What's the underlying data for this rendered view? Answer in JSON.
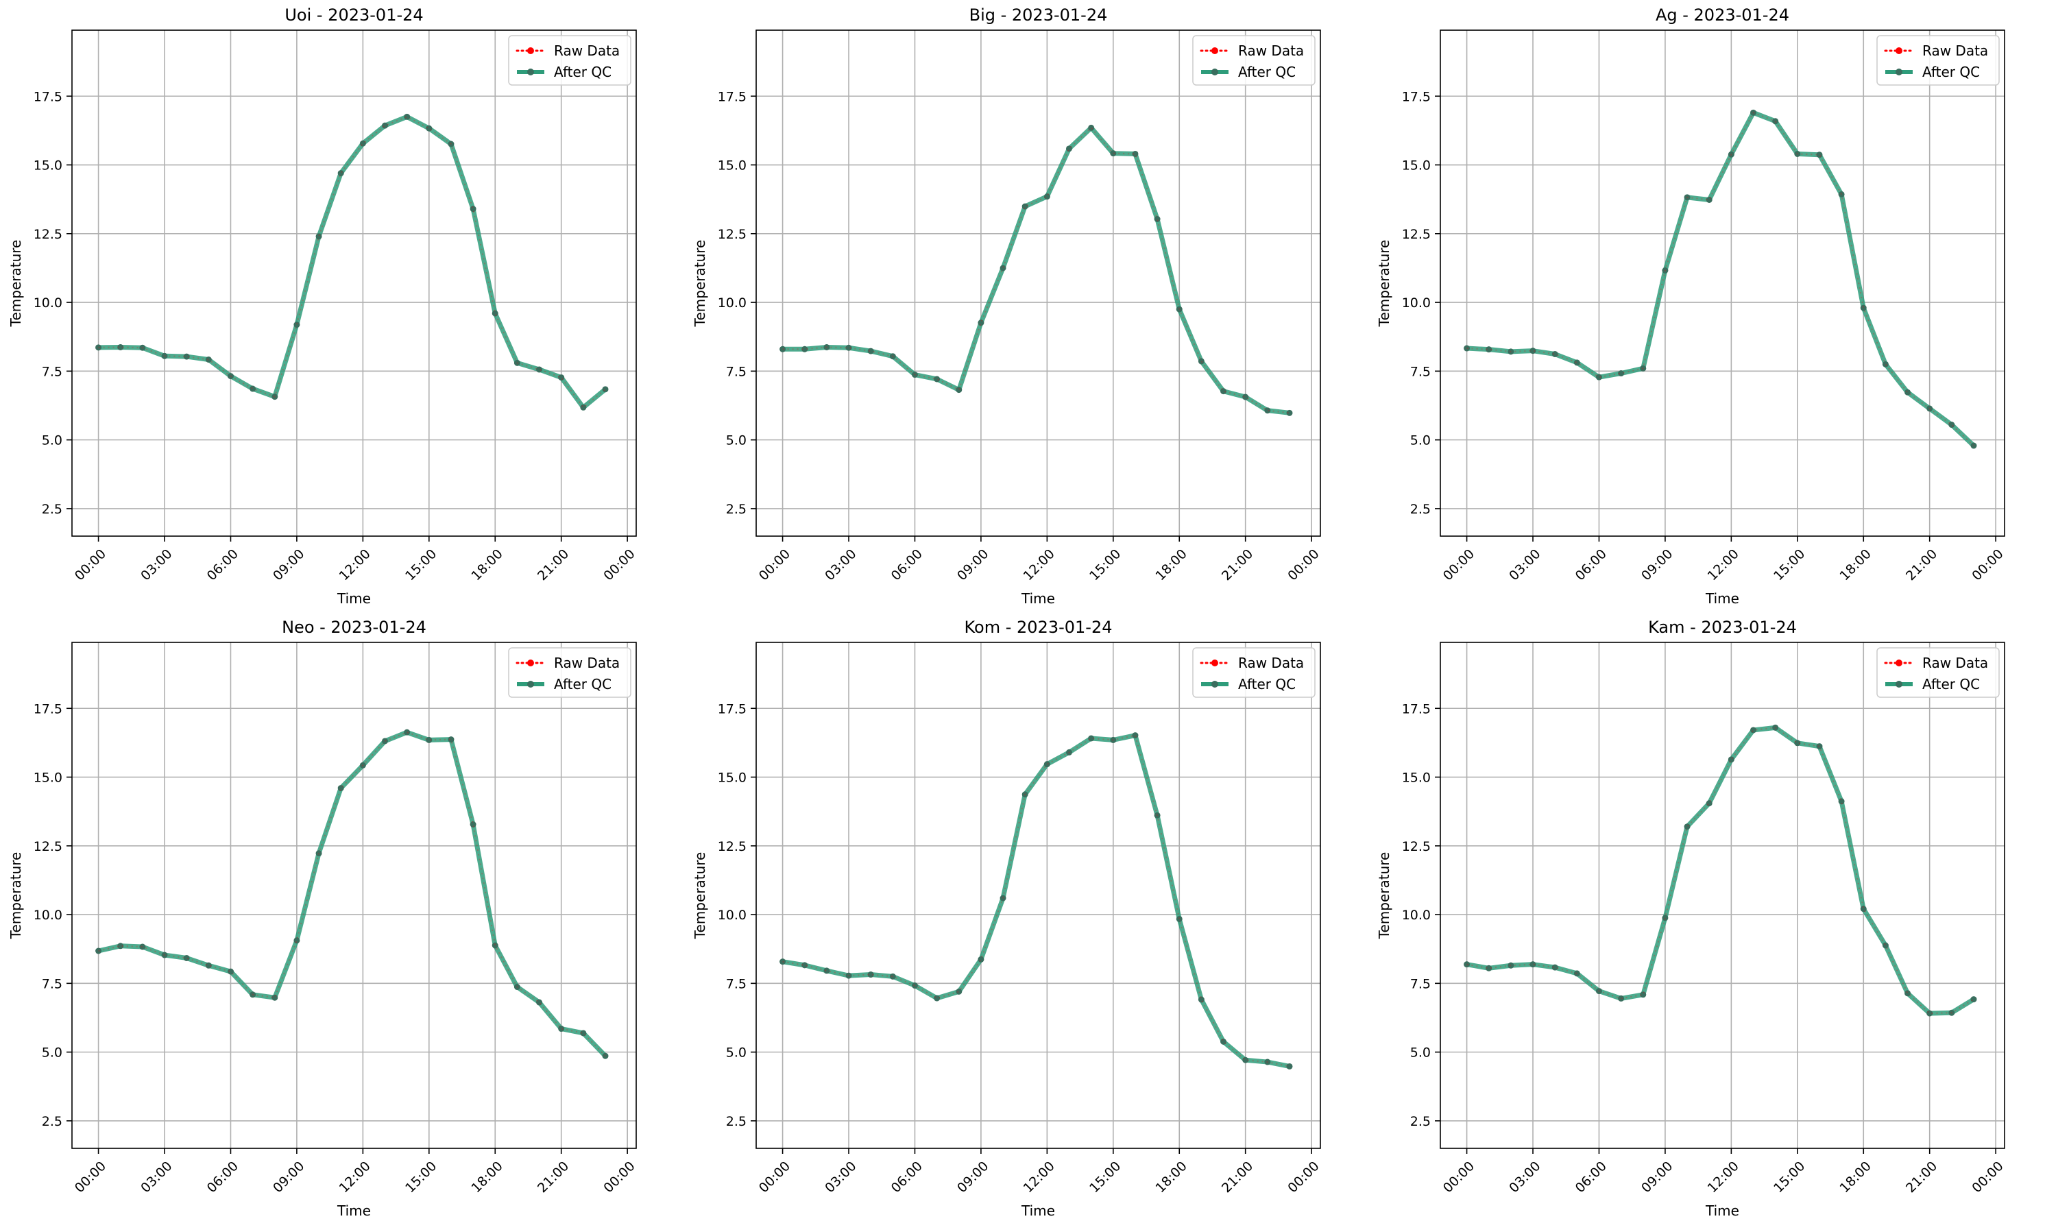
{
  "figure": {
    "background": "#ffffff",
    "layout": "2 rows x 3 columns",
    "colors": {
      "raw": "#ff0000",
      "qc": "#2e9c7a",
      "grid": "#b0b0b0",
      "marker": "#3a6e5e"
    }
  },
  "chart_data": [
    {
      "type": "line",
      "title": "Uoi - 2023-01-24",
      "xlabel": "Time",
      "ylabel": "Temperature",
      "x": [
        "00:00",
        "01:00",
        "02:00",
        "03:00",
        "04:00",
        "05:00",
        "06:00",
        "07:00",
        "08:00",
        "09:00",
        "10:00",
        "11:00",
        "12:00",
        "13:00",
        "14:00",
        "15:00",
        "16:00",
        "17:00",
        "18:00",
        "19:00",
        "20:00",
        "21:00",
        "22:00",
        "23:00"
      ],
      "xticks": [
        "00:00",
        "03:00",
        "06:00",
        "09:00",
        "12:00",
        "15:00",
        "18:00",
        "21:00",
        "00:00"
      ],
      "yticks": [
        "2.5",
        "5.0",
        "7.5",
        "10.0",
        "12.5",
        "15.0",
        "17.5"
      ],
      "ylim": [
        1.5,
        19.9
      ],
      "grid": true,
      "legend": "upper right",
      "series": [
        {
          "name": "Raw Data",
          "style": "dotted",
          "values": [
            8.36,
            8.37,
            8.35,
            8.05,
            8.03,
            7.92,
            7.32,
            6.86,
            6.57,
            9.19,
            12.4,
            14.7,
            15.78,
            16.43,
            16.75,
            16.33,
            15.76,
            13.4,
            9.6,
            7.8,
            7.56,
            7.27,
            6.18,
            6.84
          ]
        },
        {
          "name": "After QC",
          "style": "solid",
          "values": [
            8.36,
            8.37,
            8.35,
            8.05,
            8.03,
            7.92,
            7.32,
            6.86,
            6.57,
            9.19,
            12.4,
            14.7,
            15.78,
            16.43,
            16.75,
            16.33,
            15.76,
            13.4,
            9.6,
            7.8,
            7.56,
            7.27,
            6.18,
            6.84
          ]
        }
      ]
    },
    {
      "type": "line",
      "title": "Big - 2023-01-24",
      "xlabel": "Time",
      "ylabel": "Temperature",
      "x": [
        "00:00",
        "01:00",
        "02:00",
        "03:00",
        "04:00",
        "05:00",
        "06:00",
        "07:00",
        "08:00",
        "09:00",
        "10:00",
        "11:00",
        "12:00",
        "13:00",
        "14:00",
        "15:00",
        "16:00",
        "17:00",
        "18:00",
        "19:00",
        "20:00",
        "21:00",
        "22:00",
        "23:00"
      ],
      "xticks": [
        "00:00",
        "03:00",
        "06:00",
        "09:00",
        "12:00",
        "15:00",
        "18:00",
        "21:00",
        "00:00"
      ],
      "yticks": [
        "2.5",
        "5.0",
        "7.5",
        "10.0",
        "12.5",
        "15.0",
        "17.5"
      ],
      "ylim": [
        1.5,
        19.9
      ],
      "grid": true,
      "legend": "upper right",
      "series": [
        {
          "name": "Raw Data",
          "style": "dotted",
          "values": [
            8.3,
            8.3,
            8.37,
            8.35,
            8.23,
            8.04,
            7.37,
            7.21,
            6.82,
            9.26,
            11.25,
            13.49,
            13.85,
            15.59,
            16.35,
            15.42,
            15.4,
            13.03,
            9.75,
            7.86,
            6.77,
            6.56,
            6.07,
            5.98
          ]
        },
        {
          "name": "After QC",
          "style": "solid",
          "values": [
            8.3,
            8.3,
            8.37,
            8.35,
            8.23,
            8.04,
            7.37,
            7.21,
            6.82,
            9.26,
            11.25,
            13.49,
            13.85,
            15.59,
            16.35,
            15.42,
            15.4,
            13.03,
            9.75,
            7.86,
            6.77,
            6.56,
            6.07,
            5.98
          ]
        }
      ]
    },
    {
      "type": "line",
      "title": "Ag - 2023-01-24",
      "xlabel": "Time",
      "ylabel": "Temperature",
      "x": [
        "00:00",
        "01:00",
        "02:00",
        "03:00",
        "04:00",
        "05:00",
        "06:00",
        "07:00",
        "08:00",
        "09:00",
        "10:00",
        "11:00",
        "12:00",
        "13:00",
        "14:00",
        "15:00",
        "16:00",
        "17:00",
        "18:00",
        "19:00",
        "20:00",
        "21:00",
        "22:00",
        "23:00"
      ],
      "xticks": [
        "00:00",
        "03:00",
        "06:00",
        "09:00",
        "12:00",
        "15:00",
        "18:00",
        "21:00",
        "00:00"
      ],
      "yticks": [
        "2.5",
        "5.0",
        "7.5",
        "10.0",
        "12.5",
        "15.0",
        "17.5"
      ],
      "ylim": [
        1.5,
        19.9
      ],
      "grid": true,
      "legend": "upper right",
      "series": [
        {
          "name": "Raw Data",
          "style": "dotted",
          "values": [
            8.33,
            8.29,
            8.21,
            8.24,
            8.12,
            7.81,
            7.28,
            7.42,
            7.6,
            11.16,
            13.82,
            13.73,
            15.38,
            16.9,
            16.59,
            15.4,
            15.37,
            13.93,
            9.8,
            7.75,
            6.73,
            6.14,
            5.55,
            4.79
          ]
        },
        {
          "name": "After QC",
          "style": "solid",
          "values": [
            8.33,
            8.29,
            8.21,
            8.24,
            8.12,
            7.81,
            7.28,
            7.42,
            7.6,
            11.16,
            13.82,
            13.73,
            15.38,
            16.9,
            16.59,
            15.4,
            15.37,
            13.93,
            9.8,
            7.75,
            6.73,
            6.14,
            5.55,
            4.79
          ]
        }
      ]
    },
    {
      "type": "line",
      "title": "Neo - 2023-01-24",
      "xlabel": "Time",
      "ylabel": "Temperature",
      "x": [
        "00:00",
        "01:00",
        "02:00",
        "03:00",
        "04:00",
        "05:00",
        "06:00",
        "07:00",
        "08:00",
        "09:00",
        "10:00",
        "11:00",
        "12:00",
        "13:00",
        "14:00",
        "15:00",
        "16:00",
        "17:00",
        "18:00",
        "19:00",
        "20:00",
        "21:00",
        "22:00",
        "23:00"
      ],
      "xticks": [
        "00:00",
        "03:00",
        "06:00",
        "09:00",
        "12:00",
        "15:00",
        "18:00",
        "21:00",
        "00:00"
      ],
      "yticks": [
        "2.5",
        "5.0",
        "7.5",
        "10.0",
        "12.5",
        "15.0",
        "17.5"
      ],
      "ylim": [
        1.5,
        19.9
      ],
      "grid": true,
      "legend": "upper right",
      "series": [
        {
          "name": "Raw Data",
          "style": "dotted",
          "values": [
            8.68,
            8.86,
            8.83,
            8.53,
            8.42,
            8.15,
            7.93,
            7.09,
            6.98,
            9.06,
            12.23,
            14.6,
            15.43,
            16.31,
            16.63,
            16.35,
            16.37,
            13.28,
            8.88,
            7.37,
            6.81,
            5.85,
            5.69,
            4.86
          ]
        },
        {
          "name": "After QC",
          "style": "solid",
          "values": [
            8.68,
            8.86,
            8.83,
            8.53,
            8.42,
            8.15,
            7.93,
            7.09,
            6.98,
            9.06,
            12.23,
            14.6,
            15.43,
            16.31,
            16.63,
            16.35,
            16.37,
            13.28,
            8.88,
            7.37,
            6.81,
            5.85,
            5.69,
            4.86
          ]
        }
      ]
    },
    {
      "type": "line",
      "title": "Kom - 2023-01-24",
      "xlabel": "Time",
      "ylabel": "Temperature",
      "x": [
        "00:00",
        "01:00",
        "02:00",
        "03:00",
        "04:00",
        "05:00",
        "06:00",
        "07:00",
        "08:00",
        "09:00",
        "10:00",
        "11:00",
        "12:00",
        "13:00",
        "14:00",
        "15:00",
        "16:00",
        "17:00",
        "18:00",
        "19:00",
        "20:00",
        "21:00",
        "22:00",
        "23:00"
      ],
      "xticks": [
        "00:00",
        "03:00",
        "06:00",
        "09:00",
        "12:00",
        "15:00",
        "18:00",
        "21:00",
        "00:00"
      ],
      "yticks": [
        "2.5",
        "5.0",
        "7.5",
        "10.0",
        "12.5",
        "15.0",
        "17.5"
      ],
      "ylim": [
        1.5,
        19.9
      ],
      "grid": true,
      "legend": "upper right",
      "series": [
        {
          "name": "Raw Data",
          "style": "dotted",
          "values": [
            8.29,
            8.16,
            7.96,
            7.78,
            7.82,
            7.75,
            7.42,
            6.96,
            7.2,
            8.37,
            10.6,
            14.37,
            15.47,
            15.9,
            16.41,
            16.35,
            16.52,
            13.61,
            9.84,
            6.91,
            5.38,
            4.71,
            4.64,
            4.48
          ]
        },
        {
          "name": "After QC",
          "style": "solid",
          "values": [
            8.29,
            8.16,
            7.96,
            7.78,
            7.82,
            7.75,
            7.42,
            6.96,
            7.2,
            8.37,
            10.6,
            14.37,
            15.47,
            15.9,
            16.41,
            16.35,
            16.52,
            13.61,
            9.84,
            6.91,
            5.38,
            4.71,
            4.64,
            4.48
          ]
        }
      ]
    },
    {
      "type": "line",
      "title": "Kam - 2023-01-24",
      "xlabel": "Time",
      "ylabel": "Temperature",
      "x": [
        "00:00",
        "01:00",
        "02:00",
        "03:00",
        "04:00",
        "05:00",
        "06:00",
        "07:00",
        "08:00",
        "09:00",
        "10:00",
        "11:00",
        "12:00",
        "13:00",
        "14:00",
        "15:00",
        "16:00",
        "17:00",
        "18:00",
        "19:00",
        "20:00",
        "21:00",
        "22:00",
        "23:00"
      ],
      "xticks": [
        "00:00",
        "03:00",
        "06:00",
        "09:00",
        "12:00",
        "15:00",
        "18:00",
        "21:00",
        "00:00"
      ],
      "yticks": [
        "2.5",
        "5.0",
        "7.5",
        "10.0",
        "12.5",
        "15.0",
        "17.5"
      ],
      "ylim": [
        1.5,
        19.9
      ],
      "grid": true,
      "legend": "upper right",
      "series": [
        {
          "name": "Raw Data",
          "style": "dotted",
          "values": [
            8.19,
            8.05,
            8.15,
            8.19,
            8.08,
            7.86,
            7.22,
            6.95,
            7.09,
            9.88,
            13.2,
            14.05,
            15.64,
            16.71,
            16.8,
            16.24,
            16.12,
            14.12,
            10.21,
            8.88,
            7.14,
            6.41,
            6.43,
            6.92
          ]
        },
        {
          "name": "After QC",
          "style": "solid",
          "values": [
            8.19,
            8.05,
            8.15,
            8.19,
            8.08,
            7.86,
            7.22,
            6.95,
            7.09,
            9.88,
            13.2,
            14.05,
            15.64,
            16.71,
            16.8,
            16.24,
            16.12,
            14.12,
            10.21,
            8.88,
            7.14,
            6.41,
            6.43,
            6.92
          ]
        }
      ]
    }
  ]
}
